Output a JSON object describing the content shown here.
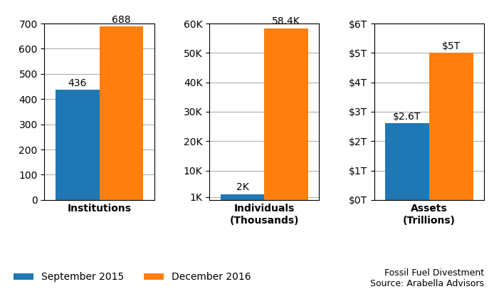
{
  "chart_data": [
    {
      "type": "bar",
      "title": "Institutions",
      "categories": [
        null
      ],
      "series": [
        {
          "name": "September 2015",
          "values": [
            436
          ],
          "value_labels": [
            "436"
          ]
        },
        {
          "name": "December 2016",
          "values": [
            688
          ],
          "value_labels": [
            "688"
          ]
        }
      ],
      "ylim": [
        0,
        700
      ],
      "yticks": [
        0,
        100,
        200,
        300,
        400,
        500,
        600,
        700
      ],
      "grid": true,
      "data_labels": true
    },
    {
      "type": "bar",
      "title": "Individuals",
      "subtitle": "(Thousands)",
      "categories": [
        null
      ],
      "series": [
        {
          "name": "September 2015",
          "values": [
            2000
          ],
          "value_labels": [
            "2K"
          ]
        },
        {
          "name": "December 2016",
          "values": [
            58400
          ],
          "value_labels": [
            "58.4K"
          ]
        }
      ],
      "ylim": [
        0,
        60000
      ],
      "yticks": [
        {
          "value": 1000,
          "label": "1K"
        },
        {
          "value": 10000,
          "label": "10K"
        },
        {
          "value": 20000,
          "label": "20K"
        },
        {
          "value": 30000,
          "label": "30K"
        },
        {
          "value": 40000,
          "label": "40K"
        },
        {
          "value": 50000,
          "label": "50K"
        },
        {
          "value": 60000,
          "label": "60K"
        }
      ],
      "grid": true,
      "data_labels": true
    },
    {
      "type": "bar",
      "title": "Assets",
      "subtitle": "(Trillions)",
      "categories": [
        null
      ],
      "series": [
        {
          "name": "September 2015",
          "values": [
            2.6
          ],
          "value_labels": [
            "$2.6T"
          ]
        },
        {
          "name": "December 2016",
          "values": [
            5.0
          ],
          "value_labels": [
            "$5T"
          ]
        }
      ],
      "ylim": [
        0,
        6
      ],
      "yticks": [
        {
          "value": 0,
          "label": "$0T"
        },
        {
          "value": 1,
          "label": "$1T"
        },
        {
          "value": 2,
          "label": "$2T"
        },
        {
          "value": 3,
          "label": "$3T"
        },
        {
          "value": 4,
          "label": "$4T"
        },
        {
          "value": 5,
          "label": "$5T"
        },
        {
          "value": 6,
          "label": "$6T"
        }
      ],
      "grid": true,
      "data_labels": true
    }
  ],
  "legend": "lower left",
  "annotation": "Fossil Fuel Divestment\nSource: Arabella Advisors"
}
